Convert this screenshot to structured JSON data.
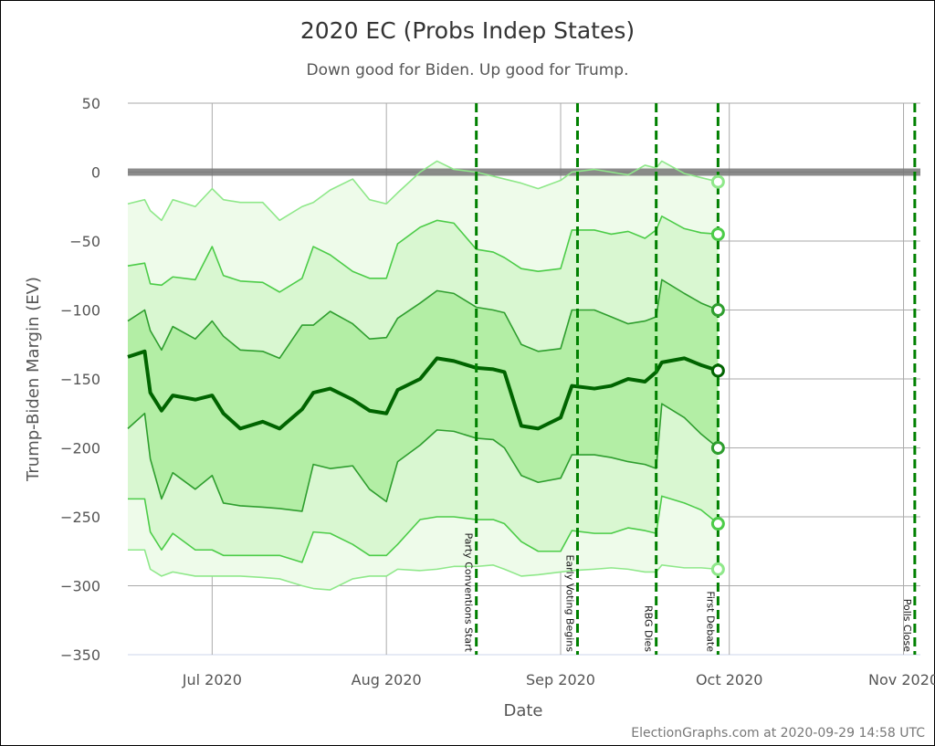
{
  "chart_data": {
    "type": "line",
    "title": "2020 EC (Probs Indep States)",
    "subtitle": "Down good for Biden. Up good for Trump.",
    "xlabel": "Date",
    "ylabel": "Trump-Biden Margin (EV)",
    "credit": "ElectionGraphs.com at 2020-09-29 14:58 UTC",
    "xlim": [
      "2020-06-16",
      "2020-11-04"
    ],
    "ylim": [
      -350,
      50
    ],
    "yticks": [
      50,
      0,
      -50,
      -100,
      -150,
      -200,
      -250,
      -300,
      -350
    ],
    "ytick_labels": [
      "50",
      "0",
      "−50",
      "−100",
      "−150",
      "−200",
      "−250",
      "−300",
      "−350"
    ],
    "xticks": [
      {
        "date": "2020-07-01",
        "label": "Jul 2020"
      },
      {
        "date": "2020-08-01",
        "label": "Aug 2020"
      },
      {
        "date": "2020-09-01",
        "label": "Sep 2020"
      },
      {
        "date": "2020-10-01",
        "label": "Oct 2020"
      },
      {
        "date": "2020-11-01",
        "label": "Nov 2020"
      }
    ],
    "grid": true,
    "reference_line": 0,
    "events": [
      {
        "date": "2020-08-17",
        "label": "Party Conventions Start"
      },
      {
        "date": "2020-09-04",
        "label": "Early Voting Begins"
      },
      {
        "date": "2020-09-18",
        "label": "RBG Dies"
      },
      {
        "date": "2020-09-29",
        "label": "First Debate"
      },
      {
        "date": "2020-11-03",
        "label": "Polls Close"
      }
    ],
    "x": [
      "2020-06-16",
      "2020-06-19",
      "2020-06-20",
      "2020-06-22",
      "2020-06-24",
      "2020-06-28",
      "2020-07-01",
      "2020-07-03",
      "2020-07-06",
      "2020-07-10",
      "2020-07-13",
      "2020-07-17",
      "2020-07-19",
      "2020-07-22",
      "2020-07-26",
      "2020-07-29",
      "2020-08-01",
      "2020-08-03",
      "2020-08-07",
      "2020-08-10",
      "2020-08-13",
      "2020-08-17",
      "2020-08-20",
      "2020-08-22",
      "2020-08-25",
      "2020-08-28",
      "2020-09-01",
      "2020-09-03",
      "2020-09-07",
      "2020-09-10",
      "2020-09-13",
      "2020-09-16",
      "2020-09-18",
      "2020-09-19",
      "2020-09-23",
      "2020-09-26",
      "2020-09-29"
    ],
    "series": [
      {
        "key": "plus3",
        "color": "#8fe88a",
        "values": [
          -23,
          -20,
          -28,
          -35,
          -20,
          -25,
          -12,
          -20,
          -22,
          -22,
          -35,
          -25,
          -22,
          -13,
          -5,
          -20,
          -23,
          -15,
          0,
          8,
          2,
          0,
          -3,
          -5,
          -8,
          -12,
          -6,
          0,
          2,
          0,
          -2,
          5,
          3,
          8,
          -1,
          -4,
          -7
        ]
      },
      {
        "key": "plus2",
        "color": "#4ccc48",
        "values": [
          -68,
          -66,
          -81,
          -82,
          -76,
          -78,
          -54,
          -75,
          -79,
          -80,
          -87,
          -77,
          -54,
          -60,
          -72,
          -77,
          -77,
          -52,
          -40,
          -35,
          -37,
          -56,
          -58,
          -62,
          -70,
          -72,
          -70,
          -42,
          -42,
          -45,
          -43,
          -48,
          -42,
          -32,
          -41,
          -44,
          -45
        ]
      },
      {
        "key": "plus1",
        "color": "#2e9e2e",
        "values": [
          -108,
          -100,
          -115,
          -129,
          -112,
          -121,
          -108,
          -119,
          -129,
          -130,
          -135,
          -111,
          -111,
          -101,
          -110,
          -121,
          -120,
          -106,
          -95,
          -86,
          -88,
          -98,
          -100,
          -102,
          -125,
          -130,
          -128,
          -100,
          -100,
          -105,
          -110,
          -108,
          -105,
          -78,
          -88,
          -95,
          -100
        ]
      },
      {
        "key": "median",
        "color": "#006400",
        "values": [
          -134,
          -130,
          -160,
          -173,
          -162,
          -165,
          -162,
          -175,
          -186,
          -181,
          -186,
          -172,
          -160,
          -157,
          -165,
          -173,
          -175,
          -158,
          -150,
          -135,
          -137,
          -142,
          -143,
          -145,
          -184,
          -186,
          -178,
          -155,
          -157,
          -155,
          -150,
          -152,
          -145,
          -138,
          -135,
          -140,
          -144
        ]
      },
      {
        "key": "minus1",
        "color": "#2e9e2e",
        "values": [
          -186,
          -175,
          -208,
          -237,
          -218,
          -230,
          -220,
          -240,
          -242,
          -243,
          -244,
          -246,
          -212,
          -215,
          -213,
          -230,
          -239,
          -210,
          -198,
          -187,
          -188,
          -193,
          -194,
          -200,
          -220,
          -225,
          -222,
          -205,
          -205,
          -207,
          -210,
          -212,
          -215,
          -168,
          -178,
          -190,
          -200
        ]
      },
      {
        "key": "minus2",
        "color": "#4ccc48",
        "values": [
          -237,
          -237,
          -261,
          -274,
          -262,
          -274,
          -274,
          -278,
          -278,
          -278,
          -278,
          -283,
          -261,
          -262,
          -270,
          -278,
          -278,
          -270,
          -252,
          -250,
          -250,
          -252,
          -252,
          -255,
          -268,
          -275,
          -275,
          -260,
          -262,
          -262,
          -258,
          -260,
          -262,
          -235,
          -240,
          -245,
          -255
        ]
      },
      {
        "key": "minus3",
        "color": "#8fe88a",
        "values": [
          -274,
          -274,
          -288,
          -293,
          -290,
          -293,
          -293,
          -293,
          -293,
          -294,
          -295,
          -300,
          -302,
          -303,
          -295,
          -293,
          -293,
          -288,
          -289,
          -288,
          -286,
          -286,
          -285,
          -288,
          -293,
          -292,
          -290,
          -289,
          -288,
          -287,
          -288,
          -290,
          -290,
          -285,
          -287,
          -287,
          -288
        ]
      }
    ],
    "band_colors": [
      "#eefbea",
      "#d9f7d1",
      "#b3eea5"
    ],
    "event_color": "#008000"
  }
}
